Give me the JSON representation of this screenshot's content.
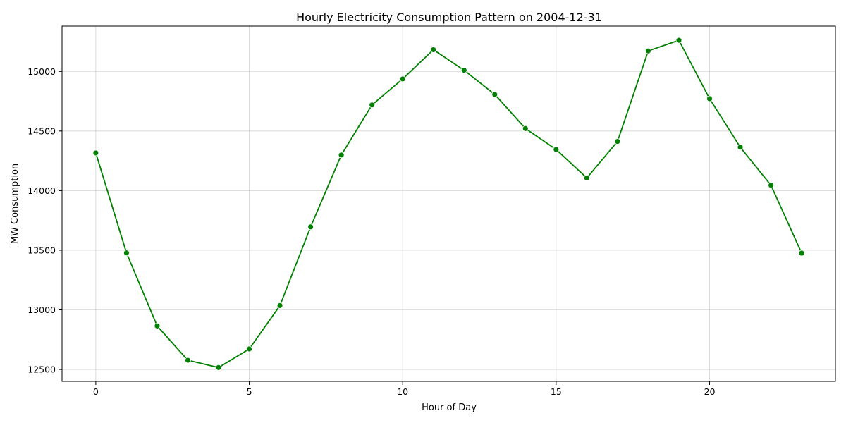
{
  "chart_data": {
    "type": "line",
    "title": "Hourly Electricity Consumption Pattern on 2004-12-31",
    "xlabel": "Hour of Day",
    "ylabel": "MW Consumption",
    "x": [
      0,
      1,
      2,
      3,
      4,
      5,
      6,
      7,
      8,
      9,
      10,
      11,
      12,
      13,
      14,
      15,
      16,
      17,
      18,
      19,
      20,
      21,
      22,
      23
    ],
    "series": [
      {
        "values": [
          14316,
          13478,
          12865,
          12577,
          12516,
          12672,
          13036,
          13696,
          14299,
          14719,
          14937,
          15182,
          15010,
          14807,
          14521,
          14345,
          14106,
          14413,
          15172,
          15261,
          14771,
          14364,
          14045,
          13476
        ],
        "color": "#008000",
        "marker": "circle"
      }
    ],
    "xlim": [
      -1.1,
      24.1
    ],
    "ylim": [
      12400,
      15380
    ],
    "xticks": [
      0,
      5,
      10,
      15,
      20
    ],
    "xtick_labels": [
      "0",
      "5",
      "10",
      "15",
      "20"
    ],
    "yticks": [
      12500,
      13000,
      13500,
      14000,
      14500,
      15000
    ],
    "ytick_labels": [
      "12500",
      "13000",
      "13500",
      "14000",
      "14500",
      "15000"
    ],
    "grid": true,
    "legend": "none"
  }
}
